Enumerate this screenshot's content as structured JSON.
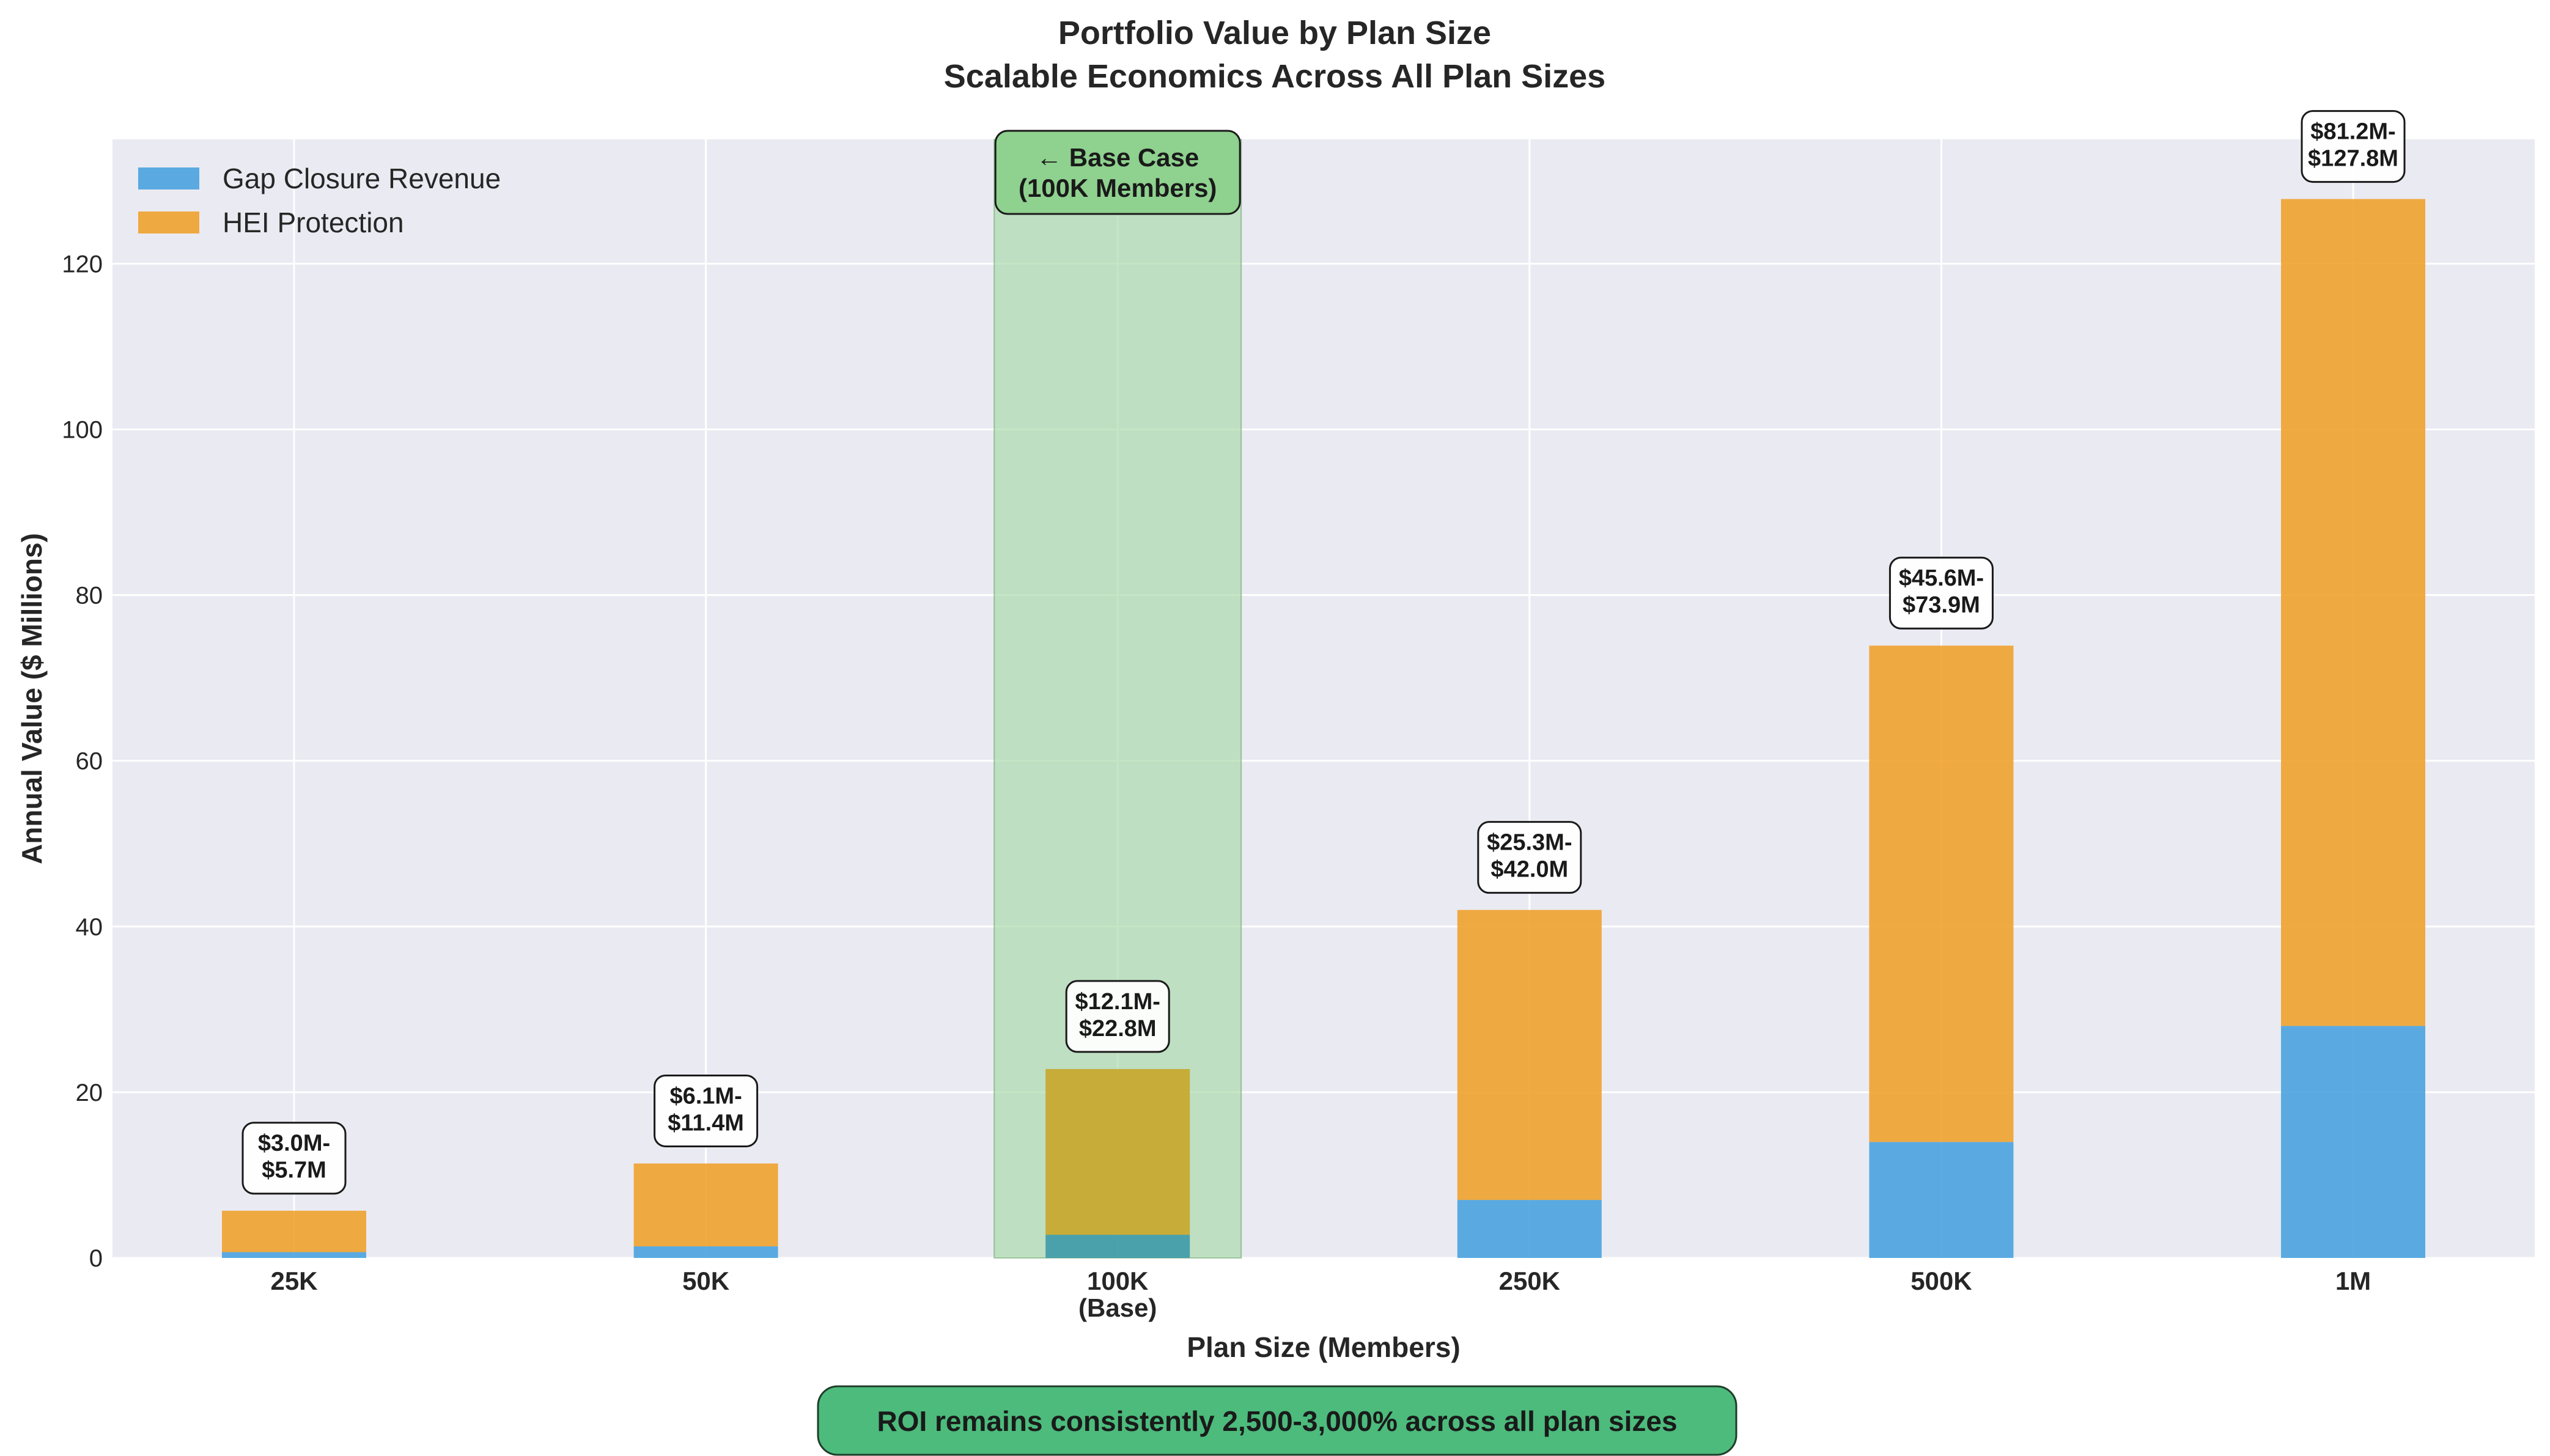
{
  "chart_data": {
    "type": "bar",
    "stacked": true,
    "title": "Portfolio Value by Plan Size",
    "subtitle": "Scalable Economics Across All Plan Sizes",
    "xlabel": "Plan Size (Members)",
    "ylabel": "Annual Value ($ Millions)",
    "categories": [
      "25K",
      "50K",
      "100K\n(Base)",
      "250K",
      "500K",
      "1M"
    ],
    "ylim": [
      0,
      135
    ],
    "yticks": [
      0,
      20,
      40,
      60,
      80,
      100,
      120
    ],
    "grid": true,
    "legend_position": "top-left",
    "series": [
      {
        "name": "Gap Closure Revenue",
        "color": "#4aa3df",
        "values": [
          0.7,
          1.4,
          2.8,
          7.0,
          14.0,
          28.0
        ]
      },
      {
        "name": "HEI Protection",
        "color": "#f0a22e",
        "values": [
          5.0,
          10.0,
          20.0,
          35.0,
          59.9,
          99.8
        ]
      }
    ],
    "bar_labels": [
      [
        "$3.0M-",
        "$5.7M"
      ],
      [
        "$6.1M-",
        "$11.4M"
      ],
      [
        "$12.1M-",
        "$22.8M"
      ],
      [
        "$25.3M-",
        "$42.0M"
      ],
      [
        "$45.6M-",
        "$73.9M"
      ],
      [
        "$81.2M-",
        "$127.8M"
      ]
    ],
    "highlight": {
      "category_index": 2,
      "label": [
        "← Base Case",
        "(100K Members)"
      ],
      "color": "#8fd18f"
    },
    "footer_note": "ROI remains consistently 2,500-3,000% across all plan sizes",
    "colors": {
      "plot_bg": "#eaeaf2",
      "grid": "#ffffff",
      "highlight_fill": "#a6d8a6",
      "annotation_box": "#ffffff",
      "footer_box": "#4cbb7c",
      "footer_border": "#1f3d2a"
    }
  }
}
